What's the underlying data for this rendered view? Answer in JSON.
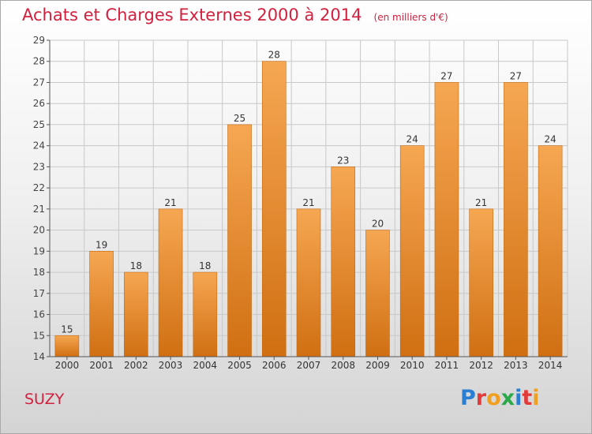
{
  "title": "Achats et Charges Externes 2000 à 2014",
  "unit_note": "(en milliers d'€)",
  "commune": "SUZY",
  "logo": {
    "letters": [
      {
        "ch": "P",
        "color": "#2a7fd4"
      },
      {
        "ch": "r",
        "color": "#e23b3b"
      },
      {
        "ch": "o",
        "color": "#f0a020"
      },
      {
        "ch": "x",
        "color": "#2aa84a"
      },
      {
        "ch": "i",
        "color": "#2a7fd4"
      },
      {
        "ch": "t",
        "color": "#e23b3b"
      },
      {
        "ch": "i",
        "color": "#f0a020"
      }
    ]
  },
  "colors": {
    "title": "#d2203f",
    "bar_light": "#f6a752",
    "bar_dark": "#d06f12",
    "grid": "#c8c8c8",
    "axis": "#555555"
  },
  "chart_data": {
    "type": "bar",
    "title": "Achats et Charges Externes 2000 à 2014",
    "xlabel": "",
    "ylabel": "",
    "categories": [
      "2000",
      "2001",
      "2002",
      "2003",
      "2004",
      "2005",
      "2006",
      "2007",
      "2008",
      "2009",
      "2010",
      "2011",
      "2012",
      "2013",
      "2014"
    ],
    "values": [
      15,
      19,
      18,
      21,
      18,
      25,
      28,
      21,
      23,
      20,
      24,
      27,
      21,
      27,
      24
    ],
    "ylim": [
      14,
      29
    ],
    "yticks": [
      14,
      15,
      16,
      17,
      18,
      19,
      20,
      21,
      22,
      23,
      24,
      25,
      26,
      27,
      28,
      29
    ],
    "grid": true,
    "data_labels": true
  }
}
